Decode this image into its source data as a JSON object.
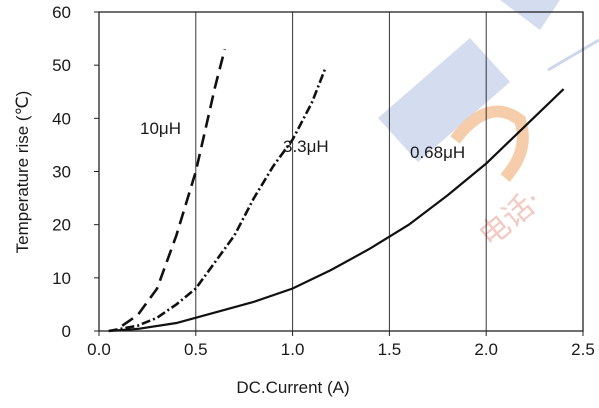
{
  "chart_data": {
    "type": "line",
    "title": "",
    "xlabel": "DC.Current (A)",
    "ylabel": "Temperature rise (℃)",
    "xlim": [
      0,
      2.5
    ],
    "ylim": [
      0,
      60
    ],
    "xticks": [
      0.0,
      0.5,
      1.0,
      1.5,
      2.0,
      2.5
    ],
    "xtick_labels": [
      "0.0",
      "0.5",
      "1.0",
      "1.5",
      "2.0",
      "2.5"
    ],
    "yticks": [
      0,
      10,
      20,
      30,
      40,
      50,
      60
    ],
    "ytick_labels": [
      "0",
      "10",
      "20",
      "30",
      "40",
      "50",
      "60"
    ],
    "grid": "vertical",
    "legend": "none",
    "series": [
      {
        "name": "10μH",
        "style": "dashed",
        "x": [
          0.12,
          0.2,
          0.3,
          0.4,
          0.5,
          0.55,
          0.6,
          0.65
        ],
        "y": [
          1,
          3,
          8,
          18,
          30,
          38,
          46,
          53
        ]
      },
      {
        "name": "3.3μH",
        "style": "dash-dot",
        "x": [
          0.05,
          0.2,
          0.3,
          0.4,
          0.5,
          0.6,
          0.7,
          0.8,
          0.9,
          1.0,
          1.1,
          1.17
        ],
        "y": [
          0,
          1,
          2.5,
          5,
          8,
          13,
          18,
          25,
          31,
          36,
          43,
          49.5
        ]
      },
      {
        "name": "0.68μH",
        "style": "solid",
        "x": [
          0.05,
          0.2,
          0.4,
          0.6,
          0.8,
          1.0,
          1.2,
          1.4,
          1.6,
          1.8,
          2.0,
          2.2,
          2.4
        ],
        "y": [
          0,
          0.4,
          1.5,
          3.5,
          5.5,
          8,
          11.5,
          15.5,
          20,
          25.5,
          31.5,
          38.5,
          45.5
        ]
      }
    ]
  },
  "watermark": {
    "text": "电话·",
    "colors": {
      "blue": "#cdd6ec",
      "orange": "#f5c49c",
      "red": "#f2c4bd"
    }
  },
  "colors": {
    "axis": "#222222",
    "line": "#111111",
    "grid": "#333333"
  }
}
